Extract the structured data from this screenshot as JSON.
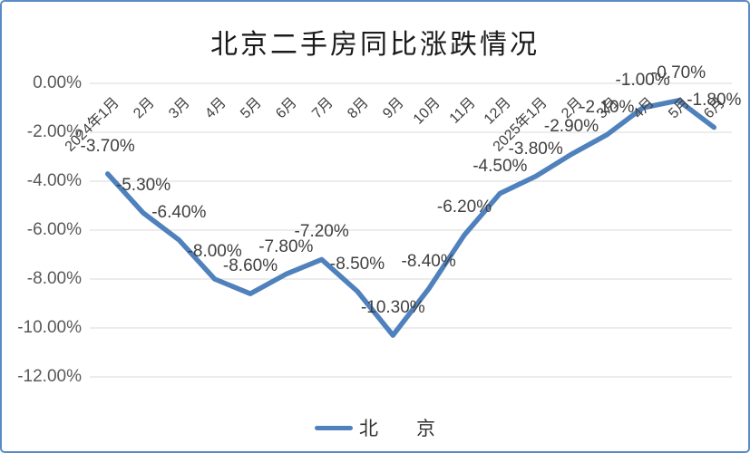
{
  "chart_data": {
    "type": "line",
    "title": "北京二手房同比涨跌情况",
    "series_label": "北　　京",
    "categories": [
      "2024年1月",
      "2月",
      "3月",
      "4月",
      "5月",
      "6月",
      "7月",
      "8月",
      "9月",
      "10月",
      "11月",
      "12月",
      "2025年1月",
      "2月",
      "3月",
      "4月",
      "5月",
      "6月"
    ],
    "series": [
      {
        "name": "北　　京",
        "values": [
          -3.7,
          -5.3,
          -6.4,
          -8.0,
          -8.6,
          -7.8,
          -7.2,
          -8.5,
          -10.3,
          -8.4,
          -6.2,
          -4.5,
          -3.8,
          -2.9,
          -2.1,
          -1.0,
          -0.7,
          -1.8
        ]
      }
    ],
    "values": [
      -3.7,
      -5.3,
      -6.4,
      -8.0,
      -8.6,
      -7.8,
      -7.2,
      -8.5,
      -10.3,
      -8.4,
      -6.2,
      -4.5,
      -3.8,
      -2.9,
      -2.1,
      -1.0,
      -0.7,
      -1.8
    ],
    "value_labels": [
      "-3.70%",
      "-5.30%",
      "-6.40%",
      "-8.00%",
      "-8.60%",
      "-7.80%",
      "-7.20%",
      "-8.50%",
      "-10.30%",
      "-8.40%",
      "-6.20%",
      "-4.50%",
      "-3.80%",
      "-2.90%",
      "-2.10%",
      "-1.00%",
      "-0.70%",
      "-1.80%"
    ],
    "y_ticks": [
      "0.00%",
      "-2.00%",
      "-4.00%",
      "-6.00%",
      "-8.00%",
      "-10.00%",
      "-12.00%"
    ],
    "y_tick_values": [
      0,
      -2,
      -4,
      -6,
      -8,
      -10,
      -12
    ],
    "ylim": [
      -12,
      0
    ],
    "xlabel": "",
    "ylabel": "",
    "grid": "horizontal",
    "legend_position": "bottom",
    "x_axis_label_rotation": 45,
    "data_labels_position": "above"
  },
  "colors": {
    "line": "#4f81bd",
    "grid": "#d9d9d9",
    "axis_text": "#595959",
    "data_label_text": "#3f3f3f",
    "title_text": "#1a1a1a",
    "frame_border": "#5b8bc7",
    "background": "#ffffff"
  }
}
